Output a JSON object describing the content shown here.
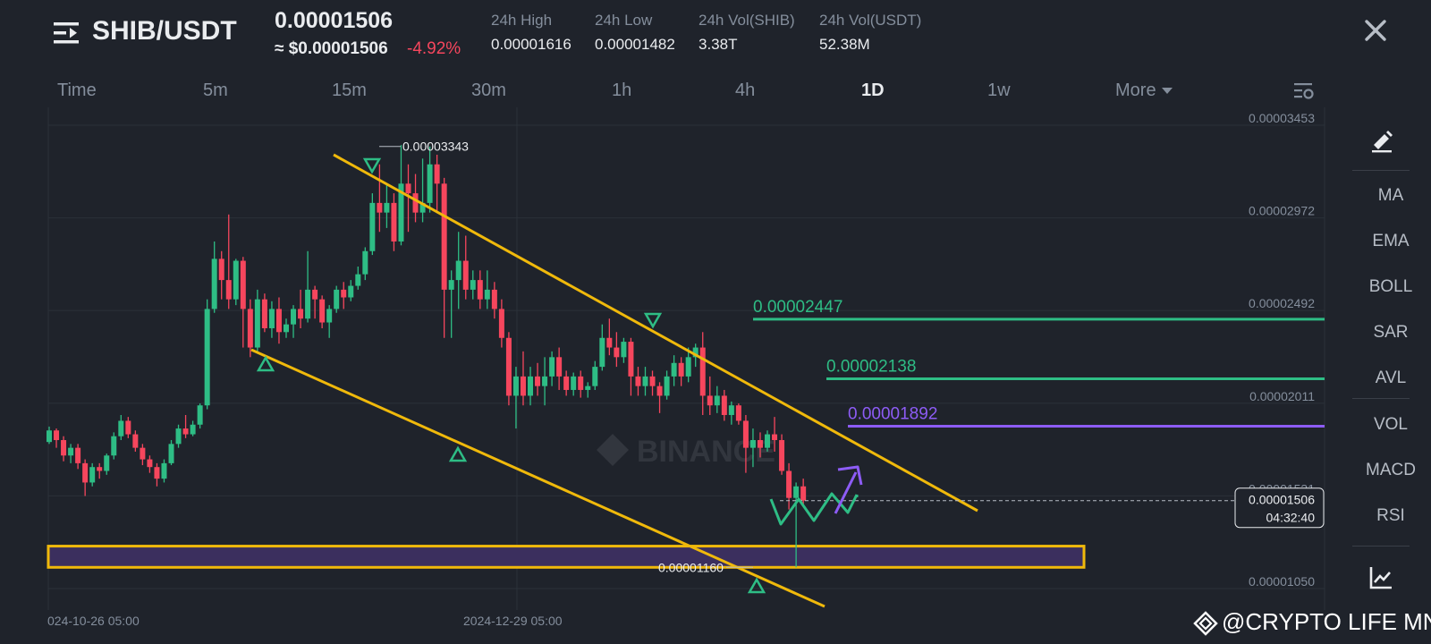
{
  "header": {
    "pair": "SHIB/USDT",
    "price": "0.00001506",
    "price_usd": "≈ $0.00001506",
    "change": "-4.92%",
    "stats": [
      {
        "label": "24h High",
        "value": "0.00001616"
      },
      {
        "label": "24h Low",
        "value": "0.00001482"
      },
      {
        "label": "24h Vol(SHIB)",
        "value": "3.38T"
      },
      {
        "label": "24h Vol(USDT)",
        "value": "52.38M"
      }
    ]
  },
  "tabs": {
    "time": "Time",
    "m5": "5m",
    "m15": "15m",
    "m30": "30m",
    "h1": "1h",
    "h4": "4h",
    "d1": "1D",
    "w1": "1w",
    "more": "More"
  },
  "sidebar": {
    "items": [
      "MA",
      "EMA",
      "BOLL",
      "SAR",
      "AVL",
      "VOL",
      "MACD",
      "RSI"
    ]
  },
  "chart_data": {
    "type": "candlestick",
    "price_axis_ticks": [
      "0.00003453",
      "0.00002972",
      "0.00002492",
      "0.00002011",
      "0.00001531",
      "0.00001050"
    ],
    "ylim": [
      1.05e-05,
      3.453e-05
    ],
    "x_axis_labels": [
      "024-10-26 05:00",
      "2024-12-29 05:00"
    ],
    "current_price": "0.00001506",
    "countdown": "04:32:40",
    "high_marker": "0.00003343",
    "low_marker": "0.00001160",
    "levels": [
      {
        "label": "0.00002447",
        "value": 2.447e-05,
        "color": "#2ebd85"
      },
      {
        "label": "0.00002138",
        "value": 2.138e-05,
        "color": "#2ebd85"
      },
      {
        "label": "0.00001892",
        "value": 1.892e-05,
        "color": "#8d5cf6"
      }
    ],
    "channel_color": "#f0b90b",
    "support_zone": {
      "from": 1.16e-05,
      "to": 1.27e-05,
      "color": "#3b2f5e"
    },
    "up_color": "#2ebd85",
    "down_color": "#f6465d",
    "candles": [
      [
        1.81e-05,
        1.87e-05,
        1.8e-05,
        1.89e-05
      ],
      [
        1.87e-05,
        1.82e-05,
        1.78e-05,
        1.88e-05
      ],
      [
        1.82e-05,
        1.74e-05,
        1.71e-05,
        1.84e-05
      ],
      [
        1.74e-05,
        1.78e-05,
        1.7e-05,
        1.8e-05
      ],
      [
        1.78e-05,
        1.7e-05,
        1.67e-05,
        1.8e-05
      ],
      [
        1.7e-05,
        1.6e-05,
        1.53e-05,
        1.72e-05
      ],
      [
        1.6e-05,
        1.68e-05,
        1.58e-05,
        1.7e-05
      ],
      [
        1.68e-05,
        1.66e-05,
        1.62e-05,
        1.7e-05
      ],
      [
        1.66e-05,
        1.74e-05,
        1.64e-05,
        1.75e-05
      ],
      [
        1.74e-05,
        1.84e-05,
        1.72e-05,
        1.86e-05
      ],
      [
        1.84e-05,
        1.92e-05,
        1.82e-05,
        1.95e-05
      ],
      [
        1.92e-05,
        1.85e-05,
        1.83e-05,
        1.94e-05
      ],
      [
        1.85e-05,
        1.78e-05,
        1.76e-05,
        1.87e-05
      ],
      [
        1.78e-05,
        1.72e-05,
        1.69e-05,
        1.8e-05
      ],
      [
        1.72e-05,
        1.68e-05,
        1.65e-05,
        1.74e-05
      ],
      [
        1.68e-05,
        1.62e-05,
        1.58e-05,
        1.7e-05
      ],
      [
        1.62e-05,
        1.7e-05,
        1.6e-05,
        1.72e-05
      ],
      [
        1.7e-05,
        1.8e-05,
        1.69e-05,
        1.82e-05
      ],
      [
        1.8e-05,
        1.88e-05,
        1.78e-05,
        1.9e-05
      ],
      [
        1.88e-05,
        1.85e-05,
        1.83e-05,
        1.95e-05
      ],
      [
        1.85e-05,
        1.9e-05,
        1.84e-05,
        1.92e-05
      ],
      [
        1.9e-05,
        2e-05,
        1.88e-05,
        2.01e-05
      ],
      [
        2e-05,
        2.5e-05,
        1.98e-05,
        2.55e-05
      ],
      [
        2.5e-05,
        2.76e-05,
        2.48e-05,
        2.85e-05
      ],
      [
        2.76e-05,
        2.65e-05,
        2.55e-05,
        2.8e-05
      ],
      [
        2.65e-05,
        2.55e-05,
        2.5e-05,
        2.99e-05
      ],
      [
        2.55e-05,
        2.75e-05,
        2.52e-05,
        2.76e-05
      ],
      [
        2.75e-05,
        2.5e-05,
        2.3e-05,
        2.77e-05
      ],
      [
        2.5e-05,
        2.3e-05,
        2.25e-05,
        2.55e-05
      ],
      [
        2.3e-05,
        2.55e-05,
        2.28e-05,
        2.6e-05
      ],
      [
        2.55e-05,
        2.4e-05,
        2.38e-05,
        2.58e-05
      ],
      [
        2.4e-05,
        2.5e-05,
        2.35e-05,
        2.54e-05
      ],
      [
        2.5e-05,
        2.38e-05,
        2.32e-05,
        2.56e-05
      ],
      [
        2.38e-05,
        2.42e-05,
        2.35e-05,
        2.45e-05
      ],
      [
        2.42e-05,
        2.5e-05,
        2.35e-05,
        2.52e-05
      ],
      [
        2.5e-05,
        2.45e-05,
        2.4e-05,
        2.6e-05
      ],
      [
        2.45e-05,
        2.6e-05,
        2.43e-05,
        2.8e-05
      ],
      [
        2.6e-05,
        2.55e-05,
        2.45e-05,
        2.62e-05
      ],
      [
        2.55e-05,
        2.43e-05,
        2.4e-05,
        2.57e-05
      ],
      [
        2.43e-05,
        2.5e-05,
        2.35e-05,
        2.52e-05
      ],
      [
        2.5e-05,
        2.6e-05,
        2.48e-05,
        2.62e-05
      ],
      [
        2.6e-05,
        2.56e-05,
        2.5e-05,
        2.64e-05
      ],
      [
        2.56e-05,
        2.62e-05,
        2.54e-05,
        2.65e-05
      ],
      [
        2.62e-05,
        2.68e-05,
        2.6e-05,
        2.72e-05
      ],
      [
        2.68e-05,
        2.8e-05,
        2.65e-05,
        2.82e-05
      ],
      [
        2.8e-05,
        3.05e-05,
        2.78e-05,
        3.1e-05
      ],
      [
        3.05e-05,
        3e-05,
        2.9e-05,
        3.25e-05
      ],
      [
        3e-05,
        3.05e-05,
        2.92e-05,
        3.15e-05
      ],
      [
        3.05e-05,
        2.85e-05,
        2.8e-05,
        3.1e-05
      ],
      [
        2.85e-05,
        3.15e-05,
        2.83e-05,
        3.35e-05
      ],
      [
        3.15e-05,
        3.1e-05,
        2.9e-05,
        3.25e-05
      ],
      [
        3.1e-05,
        3e-05,
        2.95e-05,
        3.2e-05
      ],
      [
        3e-05,
        3.05e-05,
        2.95e-05,
        3.28e-05
      ],
      [
        3.05e-05,
        3.25e-05,
        3e-05,
        3.343e-05
      ],
      [
        3.25e-05,
        3.15e-05,
        3e-05,
        3.3e-05
      ],
      [
        3.15e-05,
        2.6e-05,
        2.35e-05,
        3.18e-05
      ],
      [
        2.6e-05,
        2.65e-05,
        2.35e-05,
        2.7e-05
      ],
      [
        2.65e-05,
        2.75e-05,
        2.5e-05,
        2.9e-05
      ],
      [
        2.75e-05,
        2.6e-05,
        2.55e-05,
        2.88e-05
      ],
      [
        2.6e-05,
        2.65e-05,
        2.55e-05,
        2.7e-05
      ],
      [
        2.65e-05,
        2.55e-05,
        2.5e-05,
        2.7e-05
      ],
      [
        2.55e-05,
        2.6e-05,
        2.5e-05,
        2.7e-05
      ],
      [
        2.6e-05,
        2.5e-05,
        2.45e-05,
        2.64e-05
      ],
      [
        2.5e-05,
        2.35e-05,
        2.3e-05,
        2.55e-05
      ],
      [
        2.35e-05,
        2.05e-05,
        2e-05,
        2.38e-05
      ],
      [
        2.05e-05,
        2.15e-05,
        1.88e-05,
        2.2e-05
      ],
      [
        2.15e-05,
        2.05e-05,
        2e-05,
        2.28e-05
      ],
      [
        2.05e-05,
        2.15e-05,
        2e-05,
        2.2e-05
      ],
      [
        2.15e-05,
        2.1e-05,
        2.05e-05,
        2.22e-05
      ],
      [
        2.1e-05,
        2.15e-05,
        2e-05,
        2.25e-05
      ],
      [
        2.15e-05,
        2.25e-05,
        2.1e-05,
        2.28e-05
      ],
      [
        2.25e-05,
        2.15e-05,
        2.08e-05,
        2.3e-05
      ],
      [
        2.15e-05,
        2.08e-05,
        2.05e-05,
        2.18e-05
      ],
      [
        2.08e-05,
        2.15e-05,
        2.05e-05,
        2.17e-05
      ],
      [
        2.15e-05,
        2.08e-05,
        2.04e-05,
        2.18e-05
      ],
      [
        2.08e-05,
        2.1e-05,
        2.04e-05,
        2.12e-05
      ],
      [
        2.1e-05,
        2.2e-05,
        2.08e-05,
        2.23e-05
      ],
      [
        2.2e-05,
        2.35e-05,
        2.18e-05,
        2.42e-05
      ],
      [
        2.35e-05,
        2.3e-05,
        2.26e-05,
        2.45e-05
      ],
      [
        2.3e-05,
        2.25e-05,
        2.2e-05,
        2.38e-05
      ],
      [
        2.25e-05,
        2.33e-05,
        2.22e-05,
        2.35e-05
      ],
      [
        2.33e-05,
        2.15e-05,
        2.05e-05,
        2.35e-05
      ],
      [
        2.15e-05,
        2.1e-05,
        2.05e-05,
        2.2e-05
      ],
      [
        2.1e-05,
        2.15e-05,
        2.05e-05,
        2.2e-05
      ],
      [
        2.15e-05,
        2.1e-05,
        2.05e-05,
        2.18e-05
      ],
      [
        2.1e-05,
        2.05e-05,
        1.96e-05,
        2.12e-05
      ],
      [
        2.05e-05,
        2.15e-05,
        2.03e-05,
        2.18e-05
      ],
      [
        2.15e-05,
        2.22e-05,
        2.1e-05,
        2.26e-05
      ],
      [
        2.22e-05,
        2.15e-05,
        2.1e-05,
        2.25e-05
      ],
      [
        2.15e-05,
        2.25e-05,
        2.12e-05,
        2.3e-05
      ],
      [
        2.25e-05,
        2.3e-05,
        2.2e-05,
        2.32e-05
      ],
      [
        2.3e-05,
        2.05e-05,
        1.95e-05,
        2.38e-05
      ],
      [
        2.05e-05,
        2e-05,
        1.95e-05,
        2.15e-05
      ],
      [
        2e-05,
        2.05e-05,
        1.96e-05,
        2.1e-05
      ],
      [
        2.05e-05,
        1.95e-05,
        1.92e-05,
        2.08e-05
      ],
      [
        1.95e-05,
        2e-05,
        1.9e-05,
        2.02e-05
      ],
      [
        2e-05,
        1.92e-05,
        1.9e-05,
        2.01e-05
      ],
      [
        1.92e-05,
        1.78e-05,
        1.65e-05,
        1.95e-05
      ],
      [
        1.78e-05,
        1.82e-05,
        1.68e-05,
        1.88e-05
      ],
      [
        1.82e-05,
        1.78e-05,
        1.73e-05,
        1.86e-05
      ],
      [
        1.78e-05,
        1.85e-05,
        1.76e-05,
        1.87e-05
      ],
      [
        1.85e-05,
        1.82e-05,
        1.76e-05,
        1.94e-05
      ],
      [
        1.82e-05,
        1.66e-05,
        1.64e-05,
        1.85e-05
      ],
      [
        1.66e-05,
        1.52e-05,
        1.46e-05,
        1.7e-05
      ],
      [
        1.52e-05,
        1.58e-05,
        1.16e-05,
        1.6e-05
      ],
      [
        1.58e-05,
        1.506e-05,
        1.48e-05,
        1.62e-05
      ]
    ]
  },
  "watermark": "@CRYPTO LIFE MNE",
  "colors": {
    "background": "#1f232b",
    "accent_yellow": "#f0b90b",
    "green": "#2ebd85",
    "red": "#f6465d",
    "purple": "#8d5cf6"
  }
}
